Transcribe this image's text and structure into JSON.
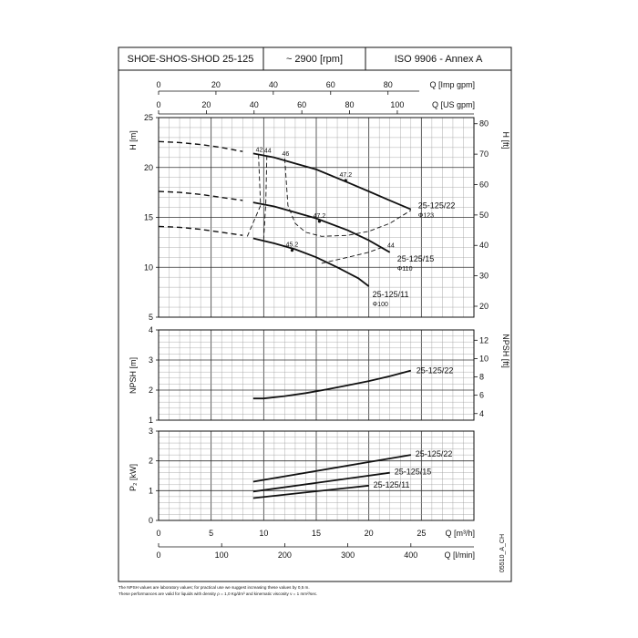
{
  "header": {
    "model": "SHOE-SHOS-SHOD 25-125",
    "speed": "~ 2900 [rpm]",
    "standard": "ISO 9906 - Annex A"
  },
  "chart_data": {
    "type": "line",
    "flow_scales": [
      {
        "label": "Q [Imp gpm]",
        "ticks": [
          "0",
          "20",
          "40",
          "60",
          "80"
        ],
        "values": [
          0,
          20,
          40,
          60,
          80
        ],
        "m3h_per_unit": 0.2728
      },
      {
        "label": "Q [US gpm]",
        "ticks": [
          "0",
          "20",
          "40",
          "60",
          "80",
          "100"
        ],
        "values": [
          0,
          20,
          40,
          60,
          80,
          100
        ],
        "m3h_per_unit": 0.2271
      },
      {
        "label": "Q [m³/h]",
        "ticks": [
          "0",
          "5",
          "10",
          "15",
          "20",
          "25"
        ],
        "values": [
          0,
          5,
          10,
          15,
          20,
          25
        ],
        "m3h_per_unit": 1
      },
      {
        "label": "Q [l/min]",
        "ticks": [
          "0",
          "100",
          "200",
          "300",
          "400"
        ],
        "values": [
          0,
          100,
          200,
          300,
          400
        ],
        "m3h_per_unit": 0.06
      }
    ],
    "head": {
      "ylabel": "H [m]",
      "ylabel_right": "H [ft]",
      "ylim": [
        5,
        25
      ],
      "yticks": [
        "5",
        "10",
        "15",
        "20",
        "25"
      ],
      "yticks_values": [
        5,
        10,
        15,
        20,
        25
      ],
      "ft_ticks": [
        "20",
        "30",
        "40",
        "50",
        "60",
        "70",
        "80"
      ],
      "ft_values": [
        20,
        30,
        40,
        50,
        60,
        70,
        80
      ],
      "series": [
        {
          "name": "25-125/22",
          "diameter": "Φ123",
          "dashed_x": [
            0,
            2,
            4,
            6,
            8
          ],
          "dashed_y": [
            22.6,
            22.5,
            22.3,
            22.0,
            21.6
          ],
          "solid_x": [
            9,
            11,
            13,
            15,
            18,
            20,
            22,
            24
          ],
          "solid_y": [
            21.4,
            21.0,
            20.4,
            19.8,
            18.5,
            17.6,
            16.7,
            15.8
          ]
        },
        {
          "name": "25-125/15",
          "diameter": "Φ110",
          "dashed_x": [
            0,
            2,
            4,
            6,
            8
          ],
          "dashed_y": [
            17.6,
            17.5,
            17.3,
            17.0,
            16.7
          ],
          "solid_x": [
            9,
            11,
            13,
            15,
            18,
            20,
            22
          ],
          "solid_y": [
            16.5,
            16.1,
            15.5,
            14.9,
            13.7,
            12.7,
            11.5
          ]
        },
        {
          "name": "25-125/11",
          "diameter": "Φ100",
          "dashed_x": [
            0,
            2,
            4,
            6,
            8
          ],
          "dashed_y": [
            14.1,
            14.0,
            13.8,
            13.5,
            13.2
          ],
          "solid_x": [
            9,
            11,
            13,
            15,
            17,
            19,
            20
          ],
          "solid_y": [
            12.9,
            12.4,
            11.8,
            11.0,
            10.0,
            8.9,
            8.1
          ]
        }
      ],
      "efficiency_lines": [
        {
          "label": "42",
          "x": [
            9.5,
            9.7,
            8.4
          ],
          "y": [
            21.3,
            16.2,
            13.0
          ]
        },
        {
          "label": "44",
          "x": [
            10.3,
            10.2,
            10.0
          ],
          "y": [
            21.2,
            16.4,
            12.8
          ]
        },
        {
          "label": "46",
          "x": [
            12,
            12.3,
            13,
            14,
            15.5,
            18,
            20,
            22,
            24
          ],
          "y": [
            20.9,
            16.2,
            14.4,
            13.5,
            13.1,
            13.2,
            13.6,
            14.4,
            15.7
          ]
        },
        {
          "label": "44",
          "x": [
            15.5,
            18,
            20,
            21.5
          ],
          "y": [
            10.4,
            11.0,
            11.5,
            12.1
          ]
        }
      ],
      "point_labels": [
        {
          "label": "47.2",
          "x": 17.8,
          "y": 18.7
        },
        {
          "label": "47.2",
          "x": 15.3,
          "y": 14.6
        },
        {
          "label": "45.2",
          "x": 12.7,
          "y": 11.7
        }
      ]
    },
    "npsh": {
      "ylabel": "NPSH [m]",
      "ylabel_right": "NPSH [ft]",
      "ylim": [
        1,
        4
      ],
      "yticks": [
        "1",
        "2",
        "3",
        "4"
      ],
      "yticks_values": [
        1,
        2,
        3,
        4
      ],
      "ft_ticks": [
        "4",
        "6",
        "8",
        "10",
        "12"
      ],
      "ft_values": [
        4,
        6,
        8,
        10,
        12
      ],
      "series": [
        {
          "name": "25-125/22",
          "x": [
            9,
            10,
            12,
            14,
            16,
            18,
            20,
            22,
            24
          ],
          "y": [
            1.72,
            1.72,
            1.8,
            1.9,
            2.02,
            2.16,
            2.3,
            2.46,
            2.65
          ]
        }
      ]
    },
    "power": {
      "ylabel": "P₂ [kW]",
      "ylim": [
        0,
        3
      ],
      "yticks": [
        "0",
        "1",
        "2",
        "3"
      ],
      "yticks_values": [
        0,
        1,
        2,
        3
      ],
      "series": [
        {
          "name": "25-125/22",
          "x": [
            9,
            24
          ],
          "y": [
            1.3,
            2.2
          ]
        },
        {
          "name": "25-125/15",
          "x": [
            9,
            22
          ],
          "y": [
            0.97,
            1.6
          ]
        },
        {
          "name": "25-125/11",
          "x": [
            9,
            20
          ],
          "y": [
            0.75,
            1.17
          ]
        }
      ]
    }
  },
  "side_code": "05510_A_CH",
  "footnotes": [
    "The NPSH values are laboratory values; for practical use we suggest increasing these values by 0,5 m.",
    "These performances are valid for liquids with density ρ = 1,0 Kg/dm³ and kinematic viscosity ν = 1 mm²/sec."
  ]
}
